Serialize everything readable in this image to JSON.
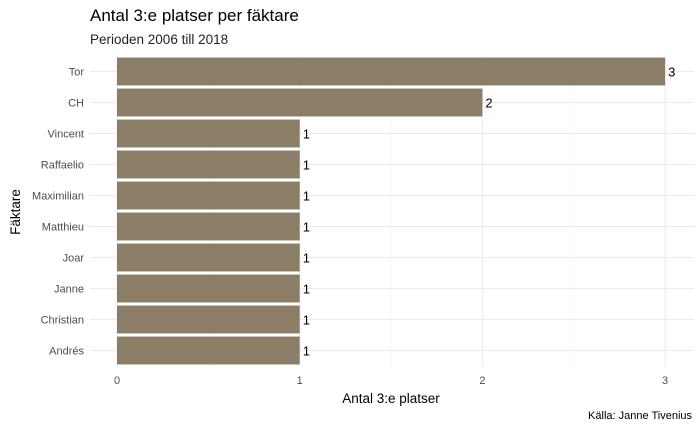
{
  "chart_data": {
    "type": "bar",
    "orientation": "horizontal",
    "title": "Antal 3:e platser per fäktare",
    "subtitle": "Perioden 2006 till 2018",
    "xlabel": "Antal 3:e platser",
    "ylabel": "Fäktare",
    "caption": "Källa: Janne Tivenius",
    "categories": [
      "Tor",
      "CH",
      "Vincent",
      "Raffaelio",
      "Maximilian",
      "Matthieu",
      "Joar",
      "Janne",
      "Christian",
      "Andrés"
    ],
    "values": [
      3,
      2,
      1,
      1,
      1,
      1,
      1,
      1,
      1,
      1
    ],
    "xlim": [
      0,
      3
    ],
    "xticks": [
      0,
      1,
      2,
      3
    ],
    "bar_color": "#8b7d66",
    "grid": true,
    "legend": "none"
  }
}
